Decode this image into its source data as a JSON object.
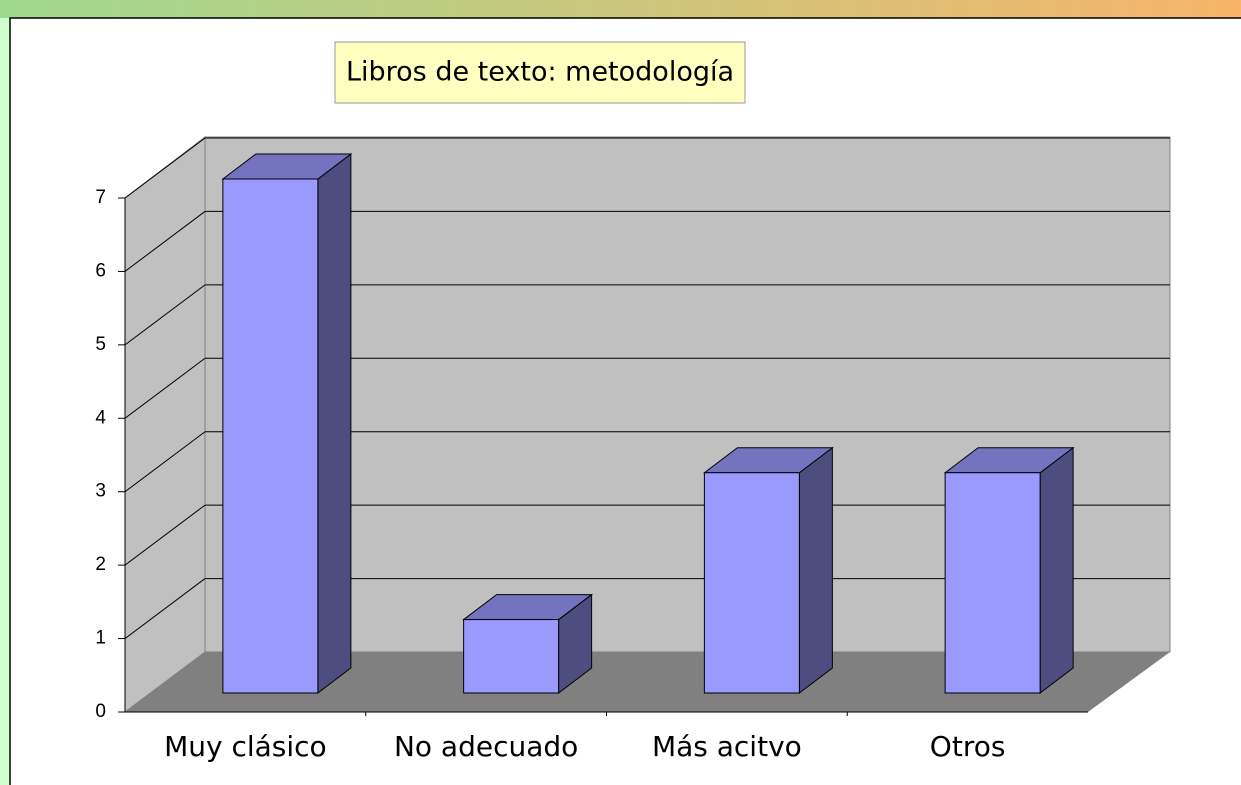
{
  "chart_data": {
    "type": "bar3d",
    "title": "Libros de texto: metodología",
    "categories": [
      "Muy clásico",
      "No adecuado",
      "Más acitvo",
      "Otros"
    ],
    "values": [
      7,
      1,
      3,
      3
    ],
    "color": "#9999ff",
    "ylim": [
      0,
      7
    ],
    "yticks": [
      0,
      1,
      2,
      3,
      4,
      5,
      6,
      7
    ],
    "grid": true
  }
}
